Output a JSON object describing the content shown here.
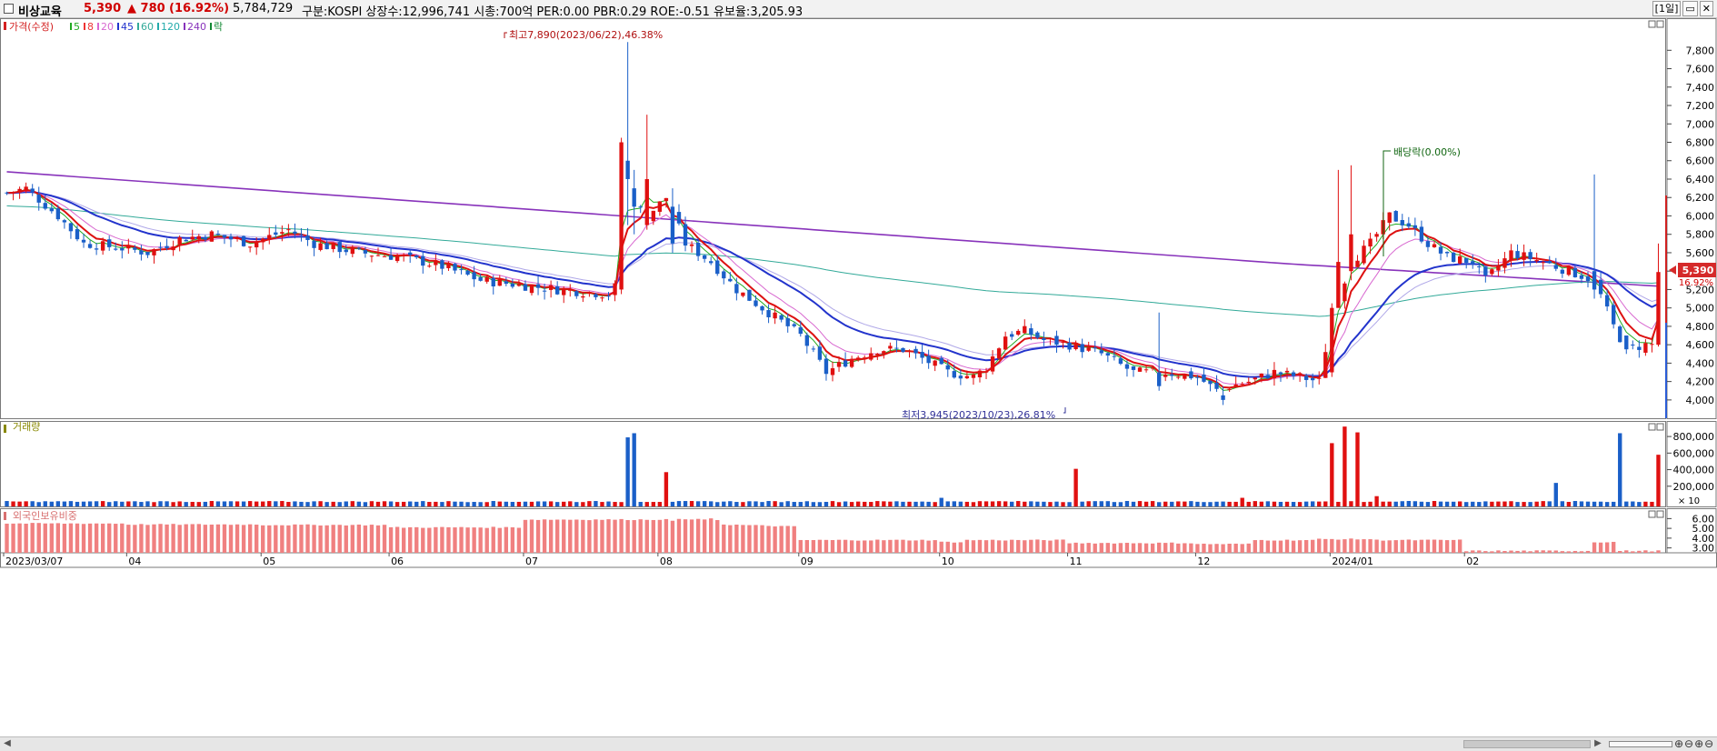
{
  "header": {
    "name": "비상교육",
    "price": "5,390",
    "change": "▲ 780",
    "change_pct": "(16.92%)",
    "volume": "5,784,729",
    "info": "구분:KOSPI 상장수:12,996,741 시총:700억 PER:0.00 PBR:0.29 ROE:-0.51 유보율:3,205.93",
    "period": "[1일]"
  },
  "legend": [
    {
      "label": "가격(수정)",
      "color": "#d32020"
    },
    {
      "label": "5",
      "color": "#22aa22"
    },
    {
      "label": "8",
      "color": "#ee3333"
    },
    {
      "label": "20",
      "color": "#d868d0"
    },
    {
      "label": "45",
      "color": "#2233cc"
    },
    {
      "label": "60",
      "color": "#33aa99"
    },
    {
      "label": "120",
      "color": "#22aaaa"
    },
    {
      "label": "240",
      "color": "#8833bb"
    },
    {
      "label": "락",
      "color": "#118833"
    }
  ],
  "annotations": {
    "high": "최고7,890(2023/06/22),46.38%",
    "low": "최저3,945(2023/10/23),26.81%",
    "dividend": "배당락(0.00%)",
    "last_price": "5,390",
    "last_pct": "16.92%"
  },
  "panels": {
    "volume_title": "거래량",
    "volume_unit": "× 10",
    "foreign_title": "외국인보유비중"
  },
  "colors": {
    "up": "#e01010",
    "down": "#1a5fc8",
    "foreign": "#f08080"
  },
  "chart_data": [
    {
      "type": "candlestick",
      "name": "가격(수정)",
      "ylim": [
        3900,
        8050
      ],
      "yticks": [
        4000,
        4200,
        4400,
        4600,
        4800,
        5000,
        5200,
        5400,
        5600,
        5800,
        6000,
        6200,
        6400,
        6600,
        6800,
        7000,
        7200,
        7400,
        7600,
        7800
      ],
      "x_labels": [
        "2023/03/07",
        "04",
        "05",
        "06",
        "07",
        "08",
        "09",
        "10",
        "11",
        "12",
        "2024/01",
        "02"
      ],
      "close_monthly_approx": [
        {
          "m": "2023/03",
          "close": 5650
        },
        {
          "m": "2023/04",
          "close": 5800
        },
        {
          "m": "2023/05",
          "close": 5550
        },
        {
          "m": "2023/06",
          "close": 5300
        },
        {
          "m": "2023/07",
          "close": 5000
        },
        {
          "m": "2023/08",
          "close": 4300
        },
        {
          "m": "2023/09",
          "close": 4550
        },
        {
          "m": "2023/10",
          "close": 4150
        },
        {
          "m": "2023/11",
          "close": 4250
        },
        {
          "m": "2023/12",
          "close": 5700
        },
        {
          "m": "2024/01",
          "close": 5600
        },
        {
          "m": "2024/02",
          "close": 5390
        }
      ],
      "high": 7890,
      "low": 3945,
      "last": 5390
    },
    {
      "type": "bar",
      "name": "거래량",
      "ylim": [
        0,
        900000
      ],
      "yticks": [
        200000,
        400000,
        600000,
        800000
      ],
      "spikes": [
        {
          "date": "2023/06/21",
          "value": 790000
        },
        {
          "date": "2023/06/22",
          "value": 840000
        },
        {
          "date": "2023/06/28",
          "value": 370000
        },
        {
          "date": "2023/08/31",
          "value": 410000
        },
        {
          "date": "2023/11/20",
          "value": 720000
        },
        {
          "date": "2023/11/21",
          "value": 920000
        },
        {
          "date": "2023/11/24",
          "value": 850000
        },
        {
          "date": "2024/01/22",
          "value": 240000
        },
        {
          "date": "2024/02/13",
          "value": 840000
        },
        {
          "date": "2024/02/20",
          "value": 580000
        }
      ]
    },
    {
      "type": "bar",
      "name": "외국인보유비중",
      "ylim": [
        2.5,
        6.5
      ],
      "yticks": [
        3.0,
        4.0,
        5.0,
        6.0
      ],
      "monthly_approx": [
        {
          "m": "2023/03",
          "value": 5.5
        },
        {
          "m": "2023/04",
          "value": 5.4
        },
        {
          "m": "2023/05",
          "value": 5.35
        },
        {
          "m": "2023/06",
          "value": 5.1
        },
        {
          "m": "2023/07",
          "value": 5.9
        },
        {
          "m": "2023/08",
          "value": 5.0
        },
        {
          "m": "2023/09",
          "value": 3.8
        },
        {
          "m": "2023/10",
          "value": 3.6
        },
        {
          "m": "2023/11",
          "value": 3.5
        },
        {
          "m": "2023/12",
          "value": 3.8
        },
        {
          "m": "2024/01",
          "value": 3.8
        },
        {
          "m": "2024/02",
          "value": 2.7
        }
      ]
    }
  ]
}
